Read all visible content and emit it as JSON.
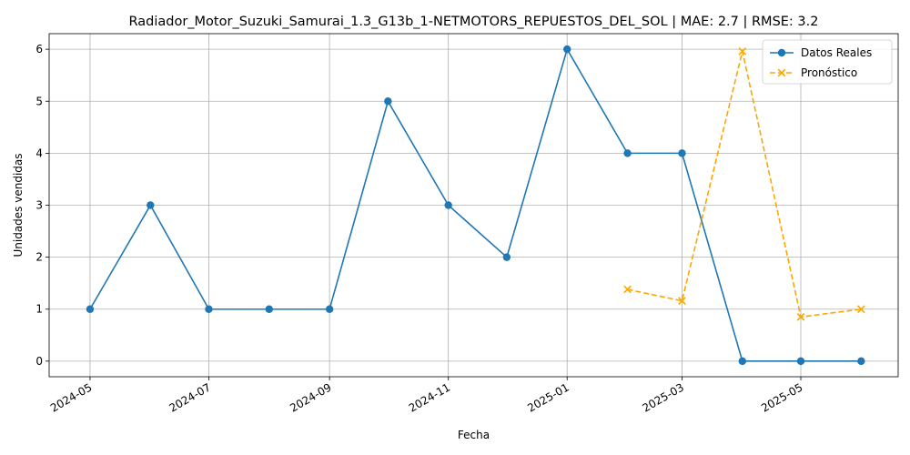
{
  "chart_data": {
    "type": "line",
    "title": "Radiador_Motor_Suzuki_Samurai_1.3_G13b_1-NETMOTORS_REPUESTOS_DEL_SOL | MAE: 2.7 | RMSE: 3.2",
    "xlabel": "Fecha",
    "ylabel": "Unidades vendidas",
    "xlim": [
      "2024-04-10",
      "2025-06-20"
    ],
    "ylim": [
      -0.3,
      6.3
    ],
    "x_ticks": [
      "2024-05",
      "2024-07",
      "2024-09",
      "2024-11",
      "2025-01",
      "2025-03",
      "2025-05"
    ],
    "x_tick_dates": [
      "2024-05-01",
      "2024-07-01",
      "2024-09-01",
      "2024-11-01",
      "2025-01-01",
      "2025-03-01",
      "2025-05-01"
    ],
    "y_ticks": [
      0,
      1,
      2,
      3,
      4,
      5,
      6
    ],
    "grid": true,
    "legend_position": "top-right",
    "series": [
      {
        "name": "Datos Reales",
        "color": "#1f77b4",
        "marker": "circle",
        "linestyle": "solid",
        "x": [
          "2024-05-01",
          "2024-06-01",
          "2024-07-01",
          "2024-08-01",
          "2024-09-01",
          "2024-10-01",
          "2024-11-01",
          "2024-12-01",
          "2025-01-01",
          "2025-02-01",
          "2025-03-01",
          "2025-04-01",
          "2025-05-01",
          "2025-06-01"
        ],
        "values": [
          1,
          3,
          1,
          1,
          1,
          5,
          3,
          2,
          6,
          4,
          4,
          0,
          0,
          0
        ]
      },
      {
        "name": "Pronóstico",
        "color": "#ffa500",
        "marker": "x",
        "linestyle": "dashed",
        "x": [
          "2025-02-01",
          "2025-03-01",
          "2025-04-01",
          "2025-05-01",
          "2025-06-01"
        ],
        "values": [
          1.38,
          1.16,
          5.96,
          0.85,
          1.0
        ]
      }
    ]
  }
}
